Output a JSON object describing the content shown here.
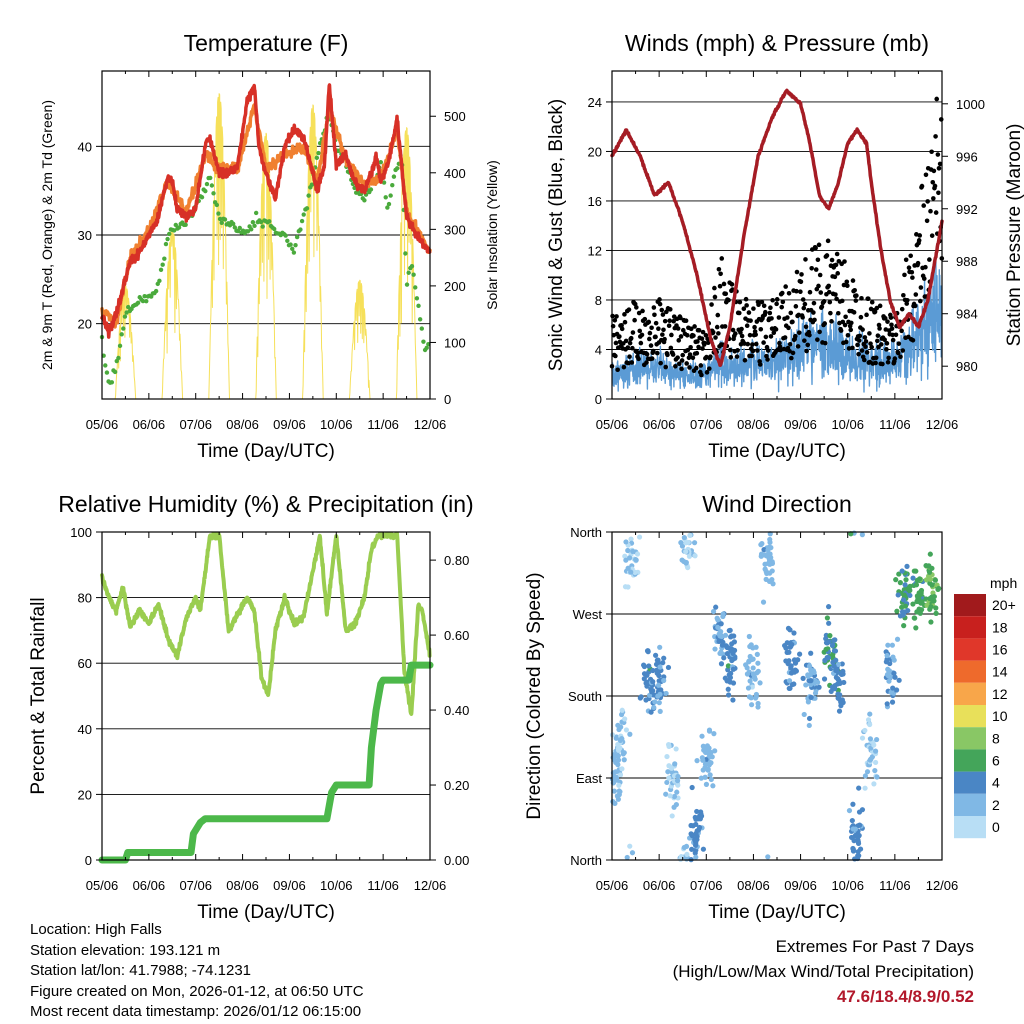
{
  "colors": {
    "temp2m": "#d73027",
    "temp9m": "#f08030",
    "dewpoint": "#4aaa3c",
    "insolation": "#f6e05a",
    "gust": "#000000",
    "wind": "#5b9bd5",
    "pressure": "#a51c24",
    "rh": "#9acd50",
    "precip": "#4cb84a",
    "extremes": "#b2182b"
  },
  "chart_data": [
    {
      "type": "line",
      "title": "Temperature (F)",
      "xlabel": "Time (Day/UTC)",
      "ylabel": "2m & 9m T (Red, Orange) & 2m Td (Green)",
      "y2label": "Solar Insolation (Yellow)",
      "x_tick_labels": [
        "05/06",
        "06/06",
        "07/06",
        "08/06",
        "09/06",
        "10/06",
        "11/06",
        "12/06"
      ],
      "ylim": [
        11.5,
        48.5
      ],
      "yticks": [
        20,
        30,
        40
      ],
      "y2lim": [
        0,
        580
      ],
      "y2ticks": [
        0,
        100,
        200,
        300,
        400,
        500
      ],
      "xlim": [
        0,
        7
      ],
      "series": [
        {
          "name": "2m T",
          "x": [
            0,
            0.15,
            0.3,
            0.5,
            0.6,
            0.8,
            1.0,
            1.2,
            1.4,
            1.5,
            1.6,
            1.8,
            2.0,
            2.2,
            2.3,
            2.5,
            2.7,
            2.9,
            3.1,
            3.25,
            3.35,
            3.5,
            3.7,
            3.9,
            4.1,
            4.3,
            4.45,
            4.6,
            4.75,
            4.85,
            5.0,
            5.2,
            5.4,
            5.6,
            5.75,
            5.85,
            5.95,
            6.1,
            6.3,
            6.5,
            6.7,
            6.85,
            7.0
          ],
          "values": [
            21,
            19,
            21,
            25,
            27,
            28,
            30,
            32,
            36.5,
            36,
            33,
            32,
            33,
            40,
            41,
            37,
            37,
            38,
            45,
            47,
            40,
            37,
            34,
            40,
            42,
            41,
            38,
            35,
            38,
            47,
            38,
            39,
            36,
            35,
            37,
            39,
            36,
            38,
            43,
            32,
            30,
            29,
            28
          ]
        },
        {
          "name": "9m T",
          "x": [
            0,
            0.3,
            0.6,
            1.0,
            1.4,
            1.8,
            2.2,
            2.5,
            2.9,
            3.25,
            3.5,
            3.9,
            4.3,
            4.6,
            4.85,
            5.2,
            5.6,
            5.95,
            6.3,
            6.5,
            7.0
          ],
          "values": [
            21.5,
            20,
            27.5,
            30.5,
            36,
            32.5,
            39,
            37.5,
            37.5,
            44.5,
            37.5,
            39,
            40,
            36,
            44.5,
            38.5,
            35.5,
            36.5,
            42,
            32.5,
            28
          ]
        },
        {
          "name": "2m Td",
          "x": [
            0,
            0.15,
            0.3,
            0.5,
            0.8,
            1.0,
            1.2,
            1.4,
            1.6,
            1.9,
            2.2,
            2.3,
            2.5,
            2.8,
            3.1,
            3.3,
            3.6,
            3.9,
            4.1,
            4.3,
            4.45,
            4.6,
            4.75,
            4.85,
            5.0,
            5.2,
            5.4,
            5.6,
            5.8,
            5.95,
            6.1,
            6.25,
            6.4,
            6.5,
            6.6,
            6.75,
            6.9,
            7.0
          ],
          "values": [
            18,
            13,
            15,
            21,
            22.5,
            23,
            24,
            30,
            31,
            32,
            35,
            36.5,
            32,
            31,
            30,
            32,
            31,
            30,
            28,
            32,
            35,
            39,
            42,
            44,
            40,
            38,
            35,
            34,
            36,
            38,
            33,
            37,
            39,
            24,
            27,
            22,
            17,
            17.5
          ]
        },
        {
          "name": "Solar Insolation",
          "axis": "y2",
          "peaks": [
            {
              "x": 0.5,
              "value": 200
            },
            {
              "x": 1.5,
              "value": 300
            },
            {
              "x": 2.5,
              "value": 540
            },
            {
              "x": 3.5,
              "value": 470
            },
            {
              "x": 4.5,
              "value": 520
            },
            {
              "x": 5.5,
              "value": 210
            },
            {
              "x": 6.5,
              "value": 480
            }
          ]
        }
      ]
    },
    {
      "type": "scatter",
      "title": "Winds (mph) & Pressure (mb)",
      "xlabel": "Time (Day/UTC)",
      "ylabel": "Sonic Wind & Gust (Blue, Black)",
      "y2label": "Station Pressure (Maroon)",
      "x_tick_labels": [
        "05/06",
        "06/06",
        "07/06",
        "08/06",
        "09/06",
        "10/06",
        "11/06",
        "12/06"
      ],
      "ylim": [
        0,
        26.5
      ],
      "yticks": [
        0,
        4,
        8,
        12,
        16,
        20,
        24
      ],
      "y2lim": [
        977.5,
        1002.5
      ],
      "y2ticks": [
        980,
        984,
        988,
        992,
        996,
        1000
      ],
      "xlim": [
        0,
        7
      ],
      "series": [
        {
          "name": "Sonic Wind",
          "x": [
            0,
            0.5,
            1.0,
            1.5,
            2.0,
            2.3,
            2.5,
            3.0,
            3.5,
            4.0,
            4.5,
            5.0,
            5.5,
            6.0,
            6.5,
            7.0
          ],
          "values": [
            2,
            2.5,
            2.5,
            2,
            2,
            3,
            2.5,
            3,
            3,
            4,
            4.5,
            3.5,
            3,
            3,
            5,
            7
          ]
        },
        {
          "name": "Gust",
          "x": [
            0,
            0.5,
            1.0,
            1.5,
            2.0,
            2.3,
            2.5,
            3.0,
            3.5,
            4.0,
            4.5,
            5.0,
            5.5,
            6.0,
            6.5,
            7.0
          ],
          "values": [
            5,
            6,
            6,
            5,
            4,
            9,
            7,
            6,
            6,
            8,
            10,
            8,
            6,
            5,
            12,
            20
          ]
        },
        {
          "name": "Station Pressure",
          "axis": "y2",
          "x": [
            0,
            0.3,
            0.6,
            0.9,
            1.2,
            1.5,
            1.8,
            2.1,
            2.3,
            2.5,
            2.8,
            3.1,
            3.4,
            3.7,
            4.0,
            4.2,
            4.4,
            4.6,
            4.8,
            5.0,
            5.2,
            5.4,
            5.5,
            5.7,
            5.9,
            6.1,
            6.3,
            6.5,
            6.7,
            6.85,
            7.0
          ],
          "values": [
            996,
            998,
            996,
            993,
            994,
            991,
            987,
            982,
            980,
            983,
            990,
            996,
            999,
            1001,
            1000,
            997,
            993,
            992,
            994,
            997,
            998,
            997,
            994,
            989,
            985,
            983,
            984,
            983,
            985,
            988,
            991
          ]
        }
      ]
    },
    {
      "type": "line",
      "title": "Relative Humidity (%) & Precipitation (in)",
      "xlabel": "Time (Day/UTC)",
      "ylabel": "Percent & Total Rainfall",
      "y2label": "",
      "x_tick_labels": [
        "05/06",
        "06/06",
        "07/06",
        "08/06",
        "09/06",
        "10/06",
        "11/06",
        "12/06"
      ],
      "ylim": [
        0,
        100
      ],
      "yticks": [
        0,
        20,
        40,
        60,
        80,
        100
      ],
      "y2lim": [
        0,
        0.875
      ],
      "y2ticks": [
        "0.00",
        "0.20",
        "0.40",
        "0.60",
        "0.80"
      ],
      "xlim": [
        0,
        7
      ],
      "series": [
        {
          "name": "Relative Humidity",
          "x": [
            0,
            0.15,
            0.3,
            0.45,
            0.6,
            0.8,
            1.0,
            1.2,
            1.4,
            1.6,
            1.8,
            2.0,
            2.1,
            2.3,
            2.5,
            2.7,
            2.9,
            3.1,
            3.25,
            3.4,
            3.55,
            3.7,
            3.9,
            4.1,
            4.3,
            4.5,
            4.65,
            4.8,
            5.0,
            5.2,
            5.4,
            5.6,
            5.75,
            5.9,
            6.0,
            6.1,
            6.3,
            6.45,
            6.6,
            6.75,
            6.85,
            7.0
          ],
          "values": [
            86,
            80,
            76,
            83,
            71,
            76,
            72,
            78,
            68,
            62,
            74,
            80,
            76,
            99,
            99,
            70,
            75,
            80,
            76,
            56,
            50,
            70,
            80,
            72,
            74,
            88,
            99,
            75,
            99,
            70,
            72,
            80,
            95,
            99,
            99,
            99,
            99,
            58,
            44,
            78,
            75,
            62
          ]
        },
        {
          "name": "Total Precipitation",
          "axis": "y2",
          "x": [
            0,
            0.5,
            0.55,
            1.9,
            1.95,
            2.1,
            2.2,
            4.8,
            4.9,
            5.0,
            5.7,
            5.75,
            5.85,
            5.95,
            6.0,
            6.55,
            6.6,
            7.0
          ],
          "values": [
            0,
            0,
            0.02,
            0.02,
            0.07,
            0.1,
            0.11,
            0.11,
            0.18,
            0.2,
            0.2,
            0.3,
            0.4,
            0.47,
            0.48,
            0.48,
            0.52,
            0.52
          ]
        }
      ]
    },
    {
      "type": "scatter",
      "title": "Wind Direction",
      "xlabel": "Time (Day/UTC)",
      "ylabel": "Direction (Colored By Speed)",
      "x_tick_labels": [
        "05/06",
        "06/06",
        "07/06",
        "08/06",
        "09/06",
        "10/06",
        "11/06",
        "12/06"
      ],
      "ylim": [
        0,
        360
      ],
      "y_tick_labels": [
        "North",
        "East",
        "South",
        "West",
        "North"
      ],
      "xlim": [
        0,
        7
      ],
      "clusters": [
        {
          "x": 0.05,
          "value": 90,
          "speed": 2
        },
        {
          "x": 0.2,
          "value": 130,
          "speed": 1
        },
        {
          "x": 0.4,
          "value": 330,
          "speed": 1
        },
        {
          "x": 0.8,
          "value": 190,
          "speed": 4
        },
        {
          "x": 1.0,
          "value": 200,
          "speed": 3
        },
        {
          "x": 1.3,
          "value": 90,
          "speed": 1
        },
        {
          "x": 1.6,
          "value": 350,
          "speed": 1
        },
        {
          "x": 1.8,
          "value": 30,
          "speed": 4
        },
        {
          "x": 2.0,
          "value": 110,
          "speed": 2
        },
        {
          "x": 2.3,
          "value": 250,
          "speed": 3
        },
        {
          "x": 2.5,
          "value": 220,
          "speed": 4
        },
        {
          "x": 3.0,
          "value": 200,
          "speed": 2
        },
        {
          "x": 3.3,
          "value": 330,
          "speed": 2
        },
        {
          "x": 3.8,
          "value": 220,
          "speed": 4
        },
        {
          "x": 4.2,
          "value": 190,
          "speed": 3
        },
        {
          "x": 4.6,
          "value": 230,
          "speed": 5
        },
        {
          "x": 4.8,
          "value": 200,
          "speed": 4
        },
        {
          "x": 5.2,
          "value": 30,
          "speed": 4
        },
        {
          "x": 5.5,
          "value": 120,
          "speed": 1
        },
        {
          "x": 5.9,
          "value": 210,
          "speed": 3
        },
        {
          "x": 6.2,
          "value": 290,
          "speed": 5
        },
        {
          "x": 6.5,
          "value": 290,
          "speed": 6
        },
        {
          "x": 6.8,
          "value": 300,
          "speed": 7
        }
      ],
      "legend": {
        "title": "mph",
        "labels": [
          "20+",
          "18",
          "16",
          "14",
          "12",
          "10",
          "8",
          "6",
          "4",
          "2",
          "0"
        ],
        "colors": [
          "#a11a1c",
          "#c8201e",
          "#e0372a",
          "#ee6a2c",
          "#f8a64a",
          "#e8e05a",
          "#89c765",
          "#44a55a",
          "#4a86c5",
          "#80b8e5",
          "#b8def5"
        ]
      }
    }
  ],
  "footer": {
    "location": "Location: High Falls",
    "elevation": "Station elevation: 193.121 m",
    "latlon": "Station lat/lon: 41.7988; -74.1231",
    "created": "Figure created on Mon, 2026-01-12, at 06:50 UTC",
    "recent": "Most recent data timestamp: 2026/01/12 06:15:00",
    "extremes_title": "Extremes For Past 7 Days",
    "extremes_subtitle": "(High/Low/Max Wind/Total Precipitation)",
    "extremes_values": "47.6/18.4/8.9/0.52"
  }
}
